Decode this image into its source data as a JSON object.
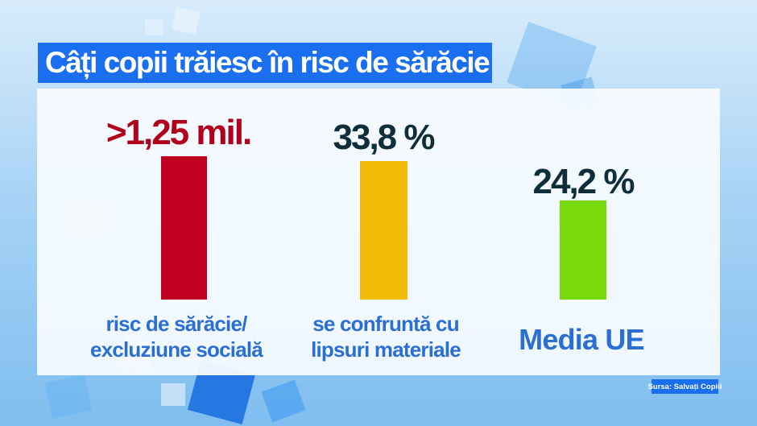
{
  "title": "Câți copii trăiesc în risc de sărăcie",
  "source": "Sursa: Salvați Copiii",
  "colors": {
    "bar_1": "#c0001e",
    "bar_2": "#f2bc08",
    "bar_3": "#78d90c",
    "title_bg": "#1a6ff0",
    "category_text": "#2b6fd4",
    "value_dark": "#0d2e3a",
    "value_red": "#b0001c"
  },
  "chart_data": {
    "type": "bar",
    "categories": [
      "risc de sărăcie/ excluziune socială",
      "se confruntă cu lipsuri materiale",
      "Media UE"
    ],
    "value_labels": [
      ">1,25 mil.",
      "33,8 %",
      "24,2 %"
    ],
    "values": [
      null,
      33.8,
      24.2
    ],
    "title": "Câți copii trăiesc în risc de sărăcie",
    "xlabel": "",
    "ylabel": "",
    "grid": false,
    "legend": "none"
  },
  "bars": [
    {
      "value_label": ">1,25 mil.",
      "category_lines": [
        "risc de sărăcie/",
        "excluziune socială"
      ]
    },
    {
      "value_label": "33,8 %",
      "category_lines": [
        "se confruntă cu",
        "lipsuri materiale"
      ]
    },
    {
      "value_label": "24,2 %",
      "category_lines": [
        "Media UE"
      ]
    }
  ]
}
